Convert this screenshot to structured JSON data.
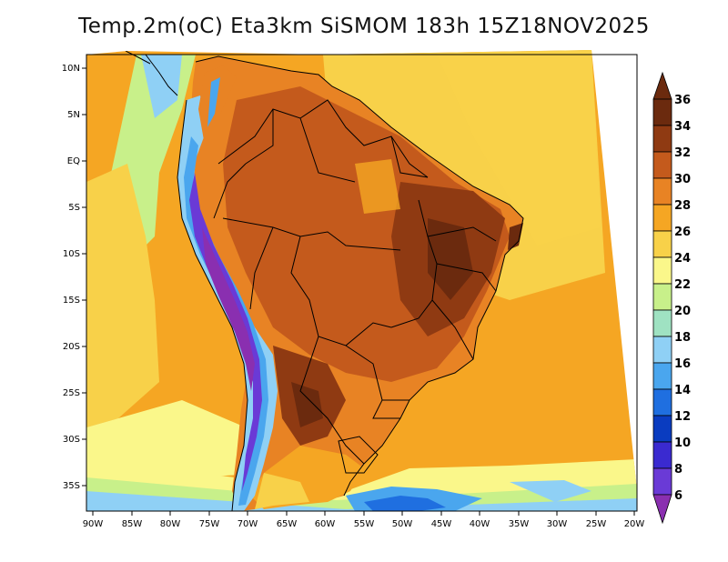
{
  "title": "Temp.2m(oC) Eta3km SiSMOM 183h 15Z18NOV2025",
  "map": {
    "lat_labels": [
      "10N",
      "5N",
      "EQ",
      "5S",
      "10S",
      "15S",
      "20S",
      "25S",
      "30S",
      "35S"
    ],
    "lon_labels": [
      "90W",
      "85W",
      "80W",
      "75W",
      "70W",
      "65W",
      "60W",
      "55W",
      "50W",
      "45W",
      "40W",
      "35W",
      "30W",
      "25W",
      "20W"
    ]
  },
  "colorbar": {
    "labels": [
      "36",
      "34",
      "32",
      "30",
      "28",
      "26",
      "24",
      "22",
      "20",
      "18",
      "16",
      "14",
      "12",
      "10",
      "8",
      "6"
    ],
    "colors": {
      "c34_36": "#6b2a0e",
      "c32_34": "#8f3a12",
      "c30_32": "#c45a1c",
      "c28_30": "#e88324",
      "c26_28": "#f5a623",
      "c24_26": "#f8d149",
      "c22_24": "#faf78a",
      "c20_22": "#c8f08a",
      "c18_20": "#9fe2c2",
      "c16_18": "#8fd0f5",
      "c14_16": "#4aa6ee",
      "c12_14": "#1f6fe0",
      "c10_12": "#0a3cc0",
      "c8_10": "#3a2ad0",
      "c6_8": "#6a3ad6",
      "below6": "#8a2fb0"
    }
  }
}
